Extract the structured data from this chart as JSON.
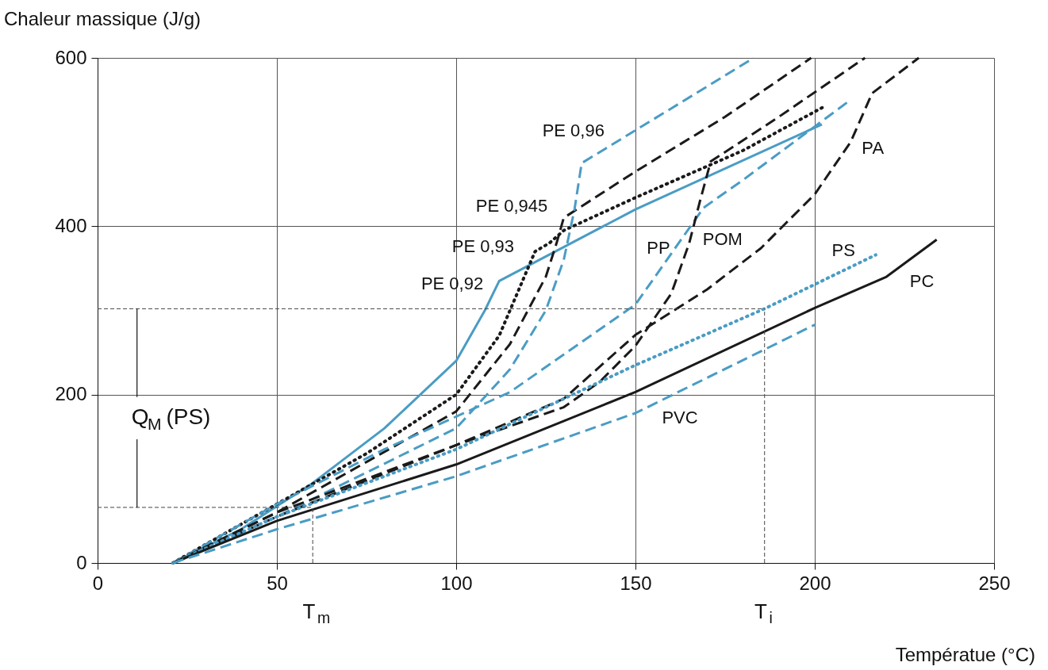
{
  "chart_data": {
    "type": "line",
    "xlabel": "Températue (°C)",
    "ylabel": "Chaleur massique (J/g)",
    "xlim": [
      0,
      250
    ],
    "ylim": [
      0,
      600
    ],
    "xticks": [
      0,
      50,
      100,
      150,
      200,
      250
    ],
    "yticks": [
      0,
      200,
      400,
      600
    ],
    "grid": true,
    "marker": "none",
    "series": [
      {
        "name": "PE 0,92",
        "color": "#4a9cc4",
        "line_style": "solid",
        "x": [
          21,
          40,
          60,
          80,
          100,
          108,
          112,
          150,
          202
        ],
        "values": [
          0,
          40,
          95,
          160,
          240,
          300,
          335,
          420,
          521
        ]
      },
      {
        "name": "PE 0,93",
        "color": "#1a1a1a",
        "line_style": "dotted",
        "x": [
          21,
          50,
          75,
          100,
          112,
          118,
          122,
          126,
          130,
          150,
          180,
          203
        ],
        "values": [
          0,
          70,
          130,
          200,
          270,
          330,
          370,
          380,
          395,
          434,
          490,
          543
        ]
      },
      {
        "name": "PE 0,945",
        "color": "#1a1a1a",
        "line_style": "dashed",
        "x": [
          21,
          50,
          75,
          100,
          115,
          125,
          128,
          130,
          150,
          175,
          199
        ],
        "values": [
          0,
          60,
          120,
          180,
          260,
          340,
          380,
          410,
          465,
          530,
          600
        ]
      },
      {
        "name": "PE 0,96",
        "color": "#4a9cc4",
        "line_style": "dashed",
        "x": [
          21,
          50,
          100,
          115,
          125,
          130,
          133,
          135,
          160,
          183
        ],
        "values": [
          0,
          55,
          160,
          230,
          300,
          360,
          420,
          475,
          540,
          600
        ]
      },
      {
        "name": "PP",
        "color": "#4a9cc4",
        "line_style": "dashed",
        "x": [
          21,
          50,
          80,
          115,
          150,
          169,
          180,
          209
        ],
        "values": [
          0,
          70,
          135,
          203,
          307,
          422,
          455,
          547
        ]
      },
      {
        "name": "POM",
        "color": "#1a1a1a",
        "line_style": "dashed",
        "x": [
          21,
          50,
          100,
          130,
          140,
          150,
          160,
          165,
          168,
          171,
          190,
          214
        ],
        "values": [
          0,
          55,
          140,
          185,
          215,
          258,
          320,
          380,
          430,
          477,
          530,
          600
        ]
      },
      {
        "name": "PA",
        "color": "#1a1a1a",
        "line_style": "dashed",
        "x": [
          21,
          50,
          100,
          130,
          150,
          170,
          185,
          200,
          210,
          216,
          229
        ],
        "values": [
          0,
          60,
          140,
          195,
          271,
          325,
          374,
          438,
          500,
          558,
          600
        ]
      },
      {
        "name": "PS",
        "color": "#4a9cc4",
        "line_style": "dotted",
        "x": [
          21,
          50,
          100,
          150,
          186,
          217
        ],
        "values": [
          0,
          55,
          135,
          235,
          302,
          366
        ]
      },
      {
        "name": "PC",
        "color": "#1a1a1a",
        "line_style": "solid",
        "x": [
          21,
          50,
          100,
          150,
          200,
          220,
          234
        ],
        "values": [
          0,
          50,
          117,
          203,
          303,
          340,
          384
        ]
      },
      {
        "name": "PVC",
        "color": "#4a9cc4",
        "line_style": "dashed",
        "x": [
          21,
          50,
          100,
          150,
          200
        ],
        "values": [
          0,
          40,
          103,
          178,
          283
        ]
      }
    ],
    "ref_lines": [
      {
        "axis": "y",
        "value": 66,
        "label": null,
        "color": "#444444",
        "line_style": "dashed"
      },
      {
        "axis": "y",
        "value": 302,
        "label": null,
        "color": "#444444",
        "line_style": "dashed"
      },
      {
        "axis": "x",
        "value": 60,
        "label": "T$_{m}$",
        "color": "#444444",
        "line_style": "dashed"
      },
      {
        "axis": "x",
        "value": 186,
        "label": "T$_{i}$",
        "color": "#444444",
        "line_style": "dashed"
      }
    ],
    "annotations": [
      {
        "text": "Q$_{M}$ (PS)",
        "x": 11,
        "y": 302
      }
    ]
  }
}
